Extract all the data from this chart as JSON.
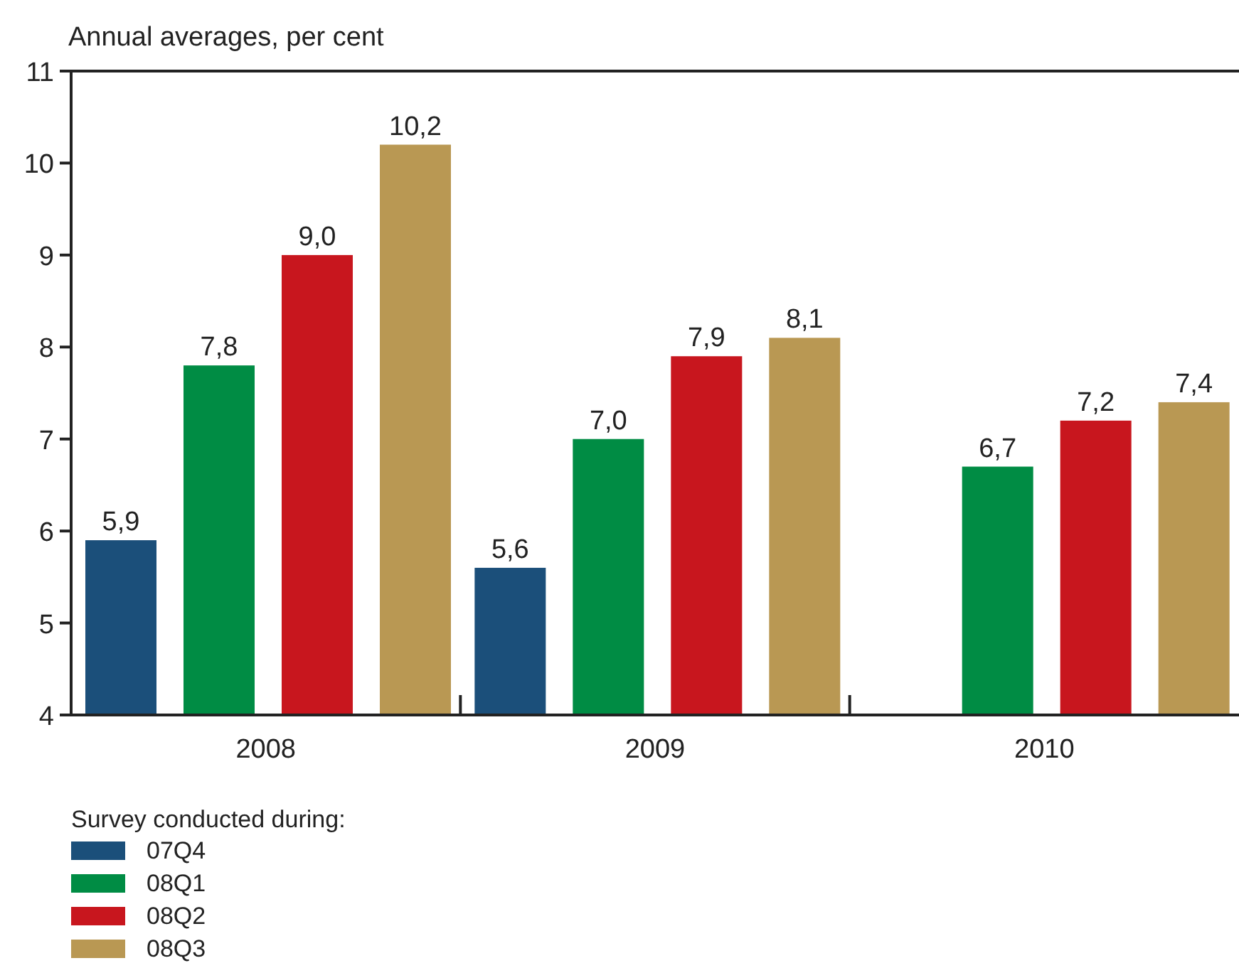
{
  "chart_data": {
    "type": "bar",
    "ylabel": "Annual averages, per cent",
    "legend_title": "Survey conducted during:",
    "legend": "bottom",
    "categories": [
      "2008",
      "2009",
      "2010"
    ],
    "ylim": [
      4,
      11
    ],
    "yticks": [
      4,
      5,
      6,
      7,
      8,
      9,
      10,
      11
    ],
    "grid": false,
    "series": [
      {
        "name": "07Q4",
        "color": "#1b4f7a",
        "values": [
          5.9,
          5.6,
          null
        ],
        "value_labels": [
          "5,9",
          "5,6",
          null
        ]
      },
      {
        "name": "08Q1",
        "color": "#008c44",
        "values": [
          7.8,
          7.0,
          6.7
        ],
        "value_labels": [
          "7,8",
          "7,0",
          "6,7"
        ]
      },
      {
        "name": "08Q2",
        "color": "#c8161e",
        "values": [
          9.0,
          7.9,
          7.2
        ],
        "value_labels": [
          "9,0",
          "7,9",
          "7,2"
        ]
      },
      {
        "name": "08Q3",
        "color": "#b99853",
        "values": [
          10.2,
          8.1,
          7.4
        ],
        "value_labels": [
          "10,2",
          "8,1",
          "7,4"
        ]
      }
    ]
  }
}
